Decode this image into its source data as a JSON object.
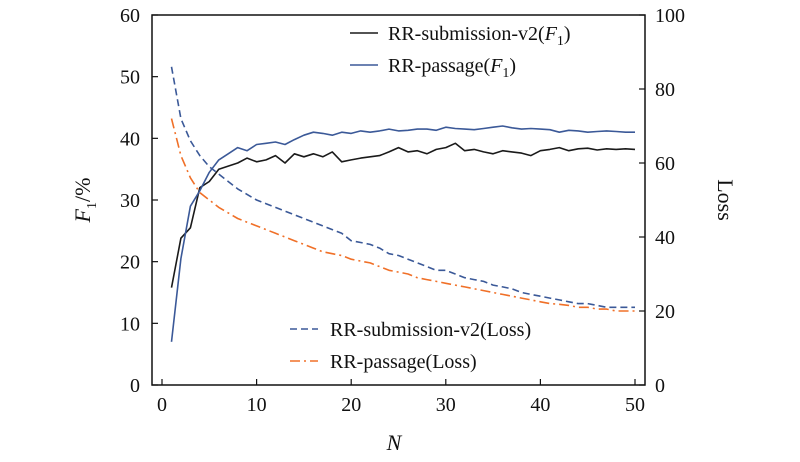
{
  "chart_data": {
    "type": "line",
    "title": "",
    "xlabel": "N",
    "ylabel_left_main": "F",
    "ylabel_left_sub": "1",
    "ylabel_left_suffix": "/%",
    "ylabel_right": "Loss",
    "xlim": [
      0,
      50
    ],
    "ylim_left": [
      0,
      60
    ],
    "ylim_right": [
      0,
      100
    ],
    "grid": false,
    "x_ticks": [
      "0",
      "10",
      "20",
      "30",
      "40",
      "50"
    ],
    "y_left_ticks": [
      "0",
      "10",
      "20",
      "30",
      "40",
      "50",
      "60"
    ],
    "y_right_ticks": [
      "0",
      "20",
      "40",
      "60",
      "80",
      "100"
    ],
    "legend_top": "top-right",
    "legend_bottom": "bottom-right",
    "x": [
      1,
      2,
      3,
      4,
      5,
      6,
      7,
      8,
      9,
      10,
      11,
      12,
      13,
      14,
      15,
      16,
      17,
      18,
      19,
      20,
      21,
      22,
      23,
      24,
      25,
      26,
      27,
      28,
      29,
      30,
      31,
      32,
      33,
      34,
      35,
      36,
      37,
      38,
      39,
      40,
      41,
      42,
      43,
      44,
      45,
      46,
      47,
      48,
      49,
      50
    ],
    "series": [
      {
        "name": "RR-submission-v2(F1)",
        "legend_main": "RR-submission-v2(",
        "legend_italic": "F",
        "legend_sub": "1",
        "legend_tail": ")",
        "axis": "left",
        "color": "#1a1a1a",
        "dash": "solid",
        "values": [
          15.8,
          23.8,
          25.5,
          32.0,
          33.0,
          35.0,
          35.5,
          36.0,
          36.8,
          36.2,
          36.5,
          37.2,
          36.0,
          37.5,
          37.0,
          37.5,
          37.0,
          37.8,
          36.2,
          36.5,
          36.8,
          37.0,
          37.2,
          37.8,
          38.5,
          37.8,
          38.0,
          37.5,
          38.2,
          38.5,
          39.2,
          38.0,
          38.2,
          37.8,
          37.5,
          38.0,
          37.8,
          37.6,
          37.2,
          38.0,
          38.2,
          38.5,
          38.0,
          38.3,
          38.4,
          38.1,
          38.3,
          38.2,
          38.3,
          38.2
        ]
      },
      {
        "name": "RR-passage(F1)",
        "legend_main": "RR-passage(",
        "legend_italic": "F",
        "legend_sub": "1",
        "legend_tail": ")",
        "axis": "left",
        "color": "#3b5998",
        "dash": "solid",
        "values": [
          7.0,
          20.5,
          29.0,
          31.5,
          34.5,
          36.5,
          37.5,
          38.5,
          38.0,
          39.0,
          39.2,
          39.4,
          39.0,
          39.8,
          40.5,
          41.0,
          40.8,
          40.5,
          41.0,
          40.8,
          41.2,
          41.0,
          41.2,
          41.5,
          41.2,
          41.3,
          41.5,
          41.5,
          41.3,
          41.8,
          41.6,
          41.5,
          41.4,
          41.6,
          41.8,
          42.0,
          41.7,
          41.5,
          41.6,
          41.5,
          41.4,
          41.0,
          41.3,
          41.2,
          41.0,
          41.1,
          41.2,
          41.1,
          41.0,
          41.0
        ]
      },
      {
        "name": "RR-submission-v2(Loss)",
        "legend_main": "RR-submission-v2(Loss)",
        "axis": "right",
        "color": "#3b5998",
        "dash": "dashed",
        "values": [
          86,
          72,
          66,
          62,
          59,
          57,
          55,
          53,
          51.5,
          50,
          49,
          48,
          47,
          46,
          45,
          44,
          43,
          42,
          41,
          39,
          38.5,
          38,
          37,
          35.5,
          35,
          34,
          33,
          32,
          31,
          31,
          30,
          29,
          28.5,
          28,
          27,
          26.5,
          26,
          25,
          24.5,
          24,
          23.5,
          23,
          22.5,
          22,
          22,
          21.5,
          21,
          21,
          21,
          21
        ]
      },
      {
        "name": "RR-passage(Loss)",
        "legend_main": "RR-passage(Loss)",
        "axis": "right",
        "color": "#f07028",
        "dash": "dashdot",
        "values": [
          72,
          62,
          56,
          52,
          50,
          48,
          46.5,
          45,
          44,
          43,
          42,
          41,
          40,
          39,
          38,
          37,
          36,
          35.5,
          35,
          34,
          33.5,
          33,
          32,
          31,
          30.5,
          30,
          29,
          28.5,
          28,
          27.5,
          27,
          26.5,
          26,
          25.5,
          25,
          24.5,
          24,
          23.5,
          23,
          22.5,
          22,
          21.8,
          21.5,
          21,
          21,
          20.5,
          20.5,
          20,
          20,
          20
        ]
      }
    ]
  }
}
